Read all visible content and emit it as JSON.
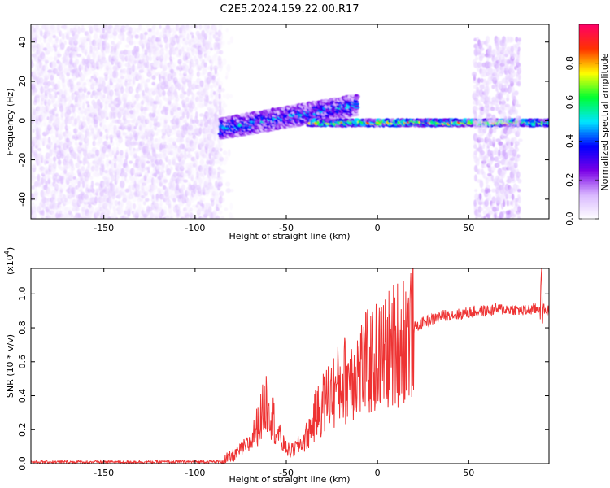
{
  "page": {
    "title": "C2E5.2024.159.22.00.R17"
  },
  "colors": {
    "snr_line": "#ee3333",
    "colorscale": [
      "#ffffff",
      "#d9b8ff",
      "#7a00e6",
      "#0000ff",
      "#00e5ff",
      "#00ff33",
      "#ffff00",
      "#ff3300",
      "#ff0066"
    ]
  },
  "chart_data": [
    {
      "type": "heatmap",
      "title": "C2E5.2024.159.22.00.R17",
      "xlabel": "Height of straight line (km)",
      "ylabel": "Frequency (Hz)",
      "xlim": [
        -190,
        94
      ],
      "ylim": [
        -50,
        49
      ],
      "xticks": [
        -150,
        -100,
        -50,
        0,
        50
      ],
      "yticks": [
        -40,
        -20,
        0,
        20,
        40
      ],
      "grid": false,
      "colorbar": {
        "label": "Normalized spectral amplitude",
        "range": [
          0,
          1
        ],
        "ticks": [
          0.0,
          0.2,
          0.4,
          0.6,
          0.8
        ]
      },
      "regions": [
        {
          "x_range": [
            -190,
            -86
          ],
          "freq_range": [
            -50,
            49
          ],
          "amplitude_range": [
            0.02,
            0.12
          ]
        },
        {
          "x_range": [
            -86,
            -80
          ],
          "freq_range": [
            -50,
            49
          ],
          "amplitude_range": [
            0.02,
            0.06
          ]
        },
        {
          "x_range": [
            -86,
            -12
          ],
          "freq_center_start": -4,
          "freq_center_end": 8,
          "freq_width": 10,
          "amplitude_range": [
            0.15,
            0.55
          ]
        },
        {
          "x_range": [
            -38,
            94
          ],
          "freq_center": -1,
          "freq_width": 3,
          "amplitude_range": [
            0.3,
            0.95
          ]
        },
        {
          "x_range": [
            53,
            78
          ],
          "freq_range": [
            -50,
            42
          ],
          "amplitude_range": [
            0.05,
            0.15
          ]
        }
      ]
    },
    {
      "type": "line",
      "xlabel": "Height of straight line (km)",
      "ylabel": "SNR (10 * v/v)",
      "yscale_label": "(x10",
      "yscale_exponent": "4",
      "yscale_suffix": ")",
      "xlim": [
        -190,
        94
      ],
      "ylim": [
        0,
        1.15
      ],
      "xticks": [
        -150,
        -100,
        -50,
        0,
        50
      ],
      "yticks": [
        0.0,
        0.2,
        0.4,
        0.6,
        0.8,
        1.0
      ],
      "grid": false,
      "series": [
        {
          "x": [
            -190,
            -120,
            -85,
            -80,
            -75,
            -70,
            -66,
            -62,
            -60,
            -58,
            -55,
            -52,
            -48,
            -44,
            -40,
            -37,
            -34,
            -30,
            -27,
            -24,
            -20,
            -16,
            -12,
            -8,
            -4,
            0,
            4,
            8,
            12,
            16,
            20,
            25,
            30,
            35,
            40,
            45,
            50,
            55,
            60,
            65,
            70,
            75,
            80,
            85,
            88,
            90,
            92,
            94
          ],
          "y": [
            0.01,
            0.01,
            0.012,
            0.04,
            0.08,
            0.12,
            0.22,
            0.33,
            0.4,
            0.3,
            0.18,
            0.12,
            0.07,
            0.1,
            0.14,
            0.2,
            0.28,
            0.35,
            0.4,
            0.43,
            0.47,
            0.52,
            0.55,
            0.57,
            0.6,
            0.62,
            0.65,
            0.69,
            0.73,
            0.77,
            0.8,
            0.83,
            0.85,
            0.87,
            0.88,
            0.88,
            0.89,
            0.9,
            0.9,
            0.91,
            0.91,
            0.91,
            0.9,
            0.91,
            0.91,
            0.92,
            0.9,
            0.9
          ]
        }
      ]
    }
  ]
}
